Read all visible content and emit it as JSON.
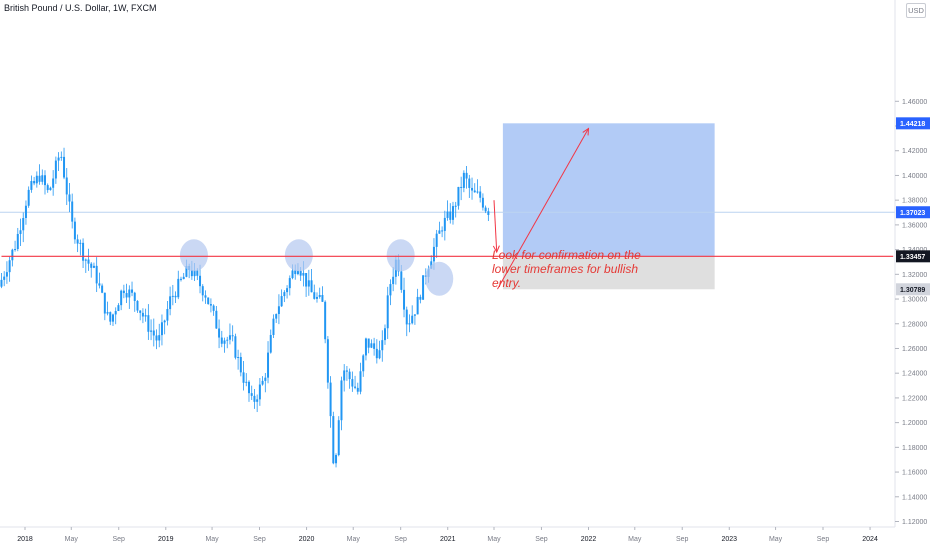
{
  "header": {
    "title": "British Pound / U.S. Dollar, 1W, FXCM",
    "currency": "USD"
  },
  "annotation": {
    "note": "Look for confirmation on the lower timeframes for bullish entry."
  },
  "colors": {
    "candle": "#2196f3",
    "support_line": "#f23645",
    "arrow": "#f23645",
    "target_zone": "#a4c2f4",
    "stop_zone": "#dcdcdc",
    "marker": "#b4c8f0",
    "last_price_line": "#bcd4f0",
    "price_badge_blue": "#2962ff",
    "price_badge_dark": "#131722",
    "price_badge_grey": "#d1d4dc"
  },
  "chart_data": {
    "type": "candlestick",
    "title": "British Pound / U.S. Dollar, 1W, FXCM",
    "y_axis_side": "right",
    "ylim": [
      1.112,
      1.468
    ],
    "y_ticks": [
      "1.46000",
      "1.44000",
      "1.42000",
      "1.40000",
      "1.38000",
      "1.36000",
      "1.34000",
      "1.32000",
      "1.30000",
      "1.28000",
      "1.26000",
      "1.24000",
      "1.22000",
      "1.20000",
      "1.18000",
      "1.16000",
      "1.14000",
      "1.12000"
    ],
    "x_ticks": [
      {
        "label": "2018",
        "date": "2018-01-01"
      },
      {
        "label": "May",
        "date": "2018-05-01"
      },
      {
        "label": "Sep",
        "date": "2018-09-01"
      },
      {
        "label": "2019",
        "date": "2019-01-01"
      },
      {
        "label": "May",
        "date": "2019-05-01"
      },
      {
        "label": "Sep",
        "date": "2019-09-01"
      },
      {
        "label": "2020",
        "date": "2020-01-01"
      },
      {
        "label": "May",
        "date": "2020-05-01"
      },
      {
        "label": "Sep",
        "date": "2020-09-01"
      },
      {
        "label": "2021",
        "date": "2021-01-01"
      },
      {
        "label": "May",
        "date": "2021-05-01"
      },
      {
        "label": "Sep",
        "date": "2021-09-01"
      },
      {
        "label": "2022",
        "date": "2022-01-01"
      },
      {
        "label": "May",
        "date": "2022-05-01"
      },
      {
        "label": "Sep",
        "date": "2022-09-01"
      },
      {
        "label": "2023",
        "date": "2023-01-01"
      },
      {
        "label": "May",
        "date": "2023-05-01"
      },
      {
        "label": "Sep",
        "date": "2023-09-01"
      },
      {
        "label": "2024",
        "date": "2024-01-01"
      }
    ],
    "price_path_anchors": [
      {
        "date": "2017-11-01",
        "price": 1.31
      },
      {
        "date": "2017-12-15",
        "price": 1.345
      },
      {
        "date": "2018-01-15",
        "price": 1.385
      },
      {
        "date": "2018-02-15",
        "price": 1.4
      },
      {
        "date": "2018-03-10",
        "price": 1.385
      },
      {
        "date": "2018-04-10",
        "price": 1.42
      },
      {
        "date": "2018-05-10",
        "price": 1.36
      },
      {
        "date": "2018-06-10",
        "price": 1.335
      },
      {
        "date": "2018-07-10",
        "price": 1.32
      },
      {
        "date": "2018-08-15",
        "price": 1.28
      },
      {
        "date": "2018-09-20",
        "price": 1.31
      },
      {
        "date": "2018-10-20",
        "price": 1.3
      },
      {
        "date": "2018-11-20",
        "price": 1.28
      },
      {
        "date": "2018-12-20",
        "price": 1.265
      },
      {
        "date": "2019-01-20",
        "price": 1.3
      },
      {
        "date": "2019-03-10",
        "price": 1.325
      },
      {
        "date": "2019-04-20",
        "price": 1.305
      },
      {
        "date": "2019-05-30",
        "price": 1.27
      },
      {
        "date": "2019-06-30",
        "price": 1.265
      },
      {
        "date": "2019-07-30",
        "price": 1.235
      },
      {
        "date": "2019-08-20",
        "price": 1.215
      },
      {
        "date": "2019-09-20",
        "price": 1.235
      },
      {
        "date": "2019-10-20",
        "price": 1.29
      },
      {
        "date": "2019-12-15",
        "price": 1.33
      },
      {
        "date": "2020-01-20",
        "price": 1.305
      },
      {
        "date": "2020-02-20",
        "price": 1.295
      },
      {
        "date": "2020-03-20",
        "price": 1.16
      },
      {
        "date": "2020-04-10",
        "price": 1.245
      },
      {
        "date": "2020-05-20",
        "price": 1.225
      },
      {
        "date": "2020-06-10",
        "price": 1.265
      },
      {
        "date": "2020-07-20",
        "price": 1.255
      },
      {
        "date": "2020-08-10",
        "price": 1.31
      },
      {
        "date": "2020-08-30",
        "price": 1.335
      },
      {
        "date": "2020-09-25",
        "price": 1.28
      },
      {
        "date": "2020-10-20",
        "price": 1.295
      },
      {
        "date": "2020-11-20",
        "price": 1.33
      },
      {
        "date": "2020-12-25",
        "price": 1.36
      },
      {
        "date": "2021-01-20",
        "price": 1.37
      },
      {
        "date": "2021-02-20",
        "price": 1.4
      },
      {
        "date": "2021-03-10",
        "price": 1.385
      },
      {
        "date": "2021-04-01",
        "price": 1.383
      },
      {
        "date": "2021-04-20",
        "price": 1.372
      }
    ],
    "highlighted_highs": [
      {
        "date": "2019-03-15",
        "price": 1.337
      },
      {
        "date": "2019-12-12",
        "price": 1.337
      },
      {
        "date": "2020-09-01",
        "price": 1.337
      }
    ],
    "highlighted_retest": {
      "date": "2020-12-10",
      "price": 1.318
    },
    "support_level": 1.33457,
    "horizontal_line_start": "2017-11-01",
    "horizontal_line_end": "2024-03-01",
    "projection": {
      "start_date": "2021-05-24",
      "end_date": "2022-11-24",
      "entry": 1.33457,
      "target": 1.44218,
      "stop": 1.30789
    },
    "arrows": [
      {
        "from_date": "2021-05-01",
        "from_price": 1.38,
        "to_date": "2021-05-08",
        "to_price": 1.338
      },
      {
        "from_date": "2021-05-10",
        "from_price": 1.308,
        "to_date": "2022-01-01",
        "to_price": 1.438
      }
    ],
    "last_price": 1.37023,
    "price_badges": [
      {
        "label": "1.44218",
        "value": 1.44218,
        "style": "blue"
      },
      {
        "label": "1.37023",
        "value": 1.37023,
        "style": "blue"
      },
      {
        "label": "1.33457",
        "value": 1.33457,
        "style": "dark"
      },
      {
        "label": "1.30789",
        "value": 1.30789,
        "style": "grey"
      }
    ]
  }
}
